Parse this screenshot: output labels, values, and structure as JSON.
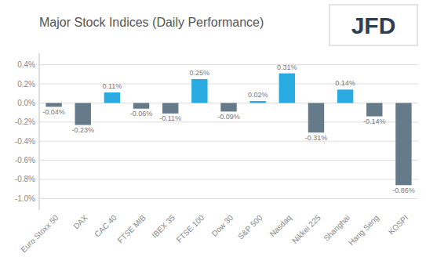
{
  "chart_data": {
    "type": "bar",
    "title": "Major Stock Indices (Daily Performance)",
    "categories": [
      "Euro Stoxx 50",
      "DAX",
      "CAC 40",
      "FTSE MIB",
      "IBEX 35",
      "FTSE 100",
      "Dow 30",
      "S&P 500",
      "Nasdaq",
      "Nikkei 225",
      "Shanghai",
      "Hang Seng",
      "KOSPI"
    ],
    "values": [
      -0.04,
      -0.23,
      0.11,
      -0.06,
      -0.11,
      0.25,
      -0.09,
      0.02,
      0.31,
      -0.31,
      0.14,
      -0.14,
      -0.86
    ],
    "value_labels": [
      "-0.04%",
      "-0.23%",
      "0.11%",
      "-0.06%",
      "-0.11%",
      "0.25%",
      "-0.09%",
      "0.02%",
      "0.31%",
      "-0.31%",
      "0.14%",
      "-0.14%",
      "-0.86%"
    ],
    "colors": [
      "#667b8a",
      "#667b8a",
      "#29abe2",
      "#667b8a",
      "#667b8a",
      "#29abe2",
      "#667b8a",
      "#29abe2",
      "#29abe2",
      "#667b8a",
      "#29abe2",
      "#667b8a",
      "#667b8a"
    ],
    "ylim": [
      -1.12,
      0.52
    ],
    "yticks": [
      {
        "value": -1.0,
        "label": "-1.0%"
      },
      {
        "value": -0.8,
        "label": "-0.8%"
      },
      {
        "value": -0.6,
        "label": "-0.6%"
      },
      {
        "value": -0.4,
        "label": "-0.4%"
      },
      {
        "value": -0.2,
        "label": "-0.2%"
      },
      {
        "value": 0.0,
        "label": "0.0%"
      },
      {
        "value": 0.2,
        "label": "0.2%"
      },
      {
        "value": 0.4,
        "label": "0.4%"
      }
    ],
    "grid": true,
    "data_labels": true,
    "annotations": [
      "JFD"
    ]
  }
}
